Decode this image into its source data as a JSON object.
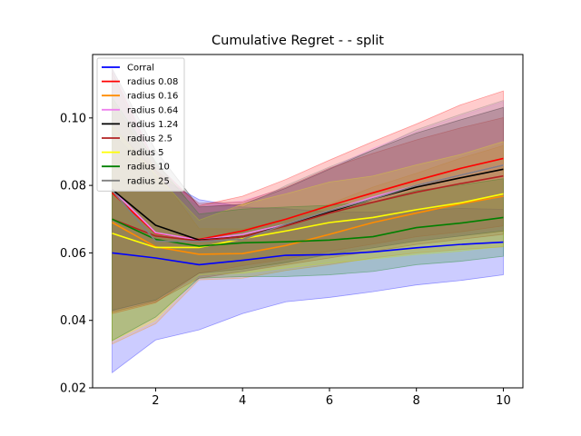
{
  "chart_data": {
    "type": "line",
    "title": "Cumulative Regret -  - split",
    "xlabel": "",
    "ylabel": "",
    "xlim": [
      0.55,
      10.45
    ],
    "ylim": [
      0.02,
      0.1188
    ],
    "x": [
      1,
      2,
      3,
      4,
      5,
      6,
      7,
      8,
      9,
      10
    ],
    "xticks": [
      2,
      4,
      6,
      8,
      10
    ],
    "yticks": [
      0.02,
      0.04,
      0.06,
      0.08,
      0.1
    ],
    "ytick_labels": [
      "0.02",
      "0.04",
      "0.06",
      "0.08",
      "0.10"
    ],
    "grid": false,
    "legend_placement": "upper-left",
    "band_opacity": 0.2,
    "series": [
      {
        "name": "Corral",
        "color": "#0000ff",
        "values": [
          0.06,
          0.0585,
          0.0565,
          0.0578,
          0.0593,
          0.0595,
          0.0603,
          0.0615,
          0.0625,
          0.0632
        ],
        "lower": [
          0.0245,
          0.0342,
          0.0372,
          0.042,
          0.0455,
          0.0468,
          0.0485,
          0.0505,
          0.0518,
          0.0535
        ],
        "upper": [
          0.0955,
          0.0828,
          0.0758,
          0.0736,
          0.0731,
          0.0722,
          0.0721,
          0.0725,
          0.0732,
          0.0729
        ]
      },
      {
        "name": "radius 0.08",
        "color": "#ff0000",
        "values": [
          0.0778,
          0.0658,
          0.064,
          0.0665,
          0.07,
          0.074,
          0.0778,
          0.0815,
          0.085,
          0.088
        ],
        "lower": [
          0.042,
          0.0452,
          0.054,
          0.0562,
          0.0582,
          0.0605,
          0.0626,
          0.0648,
          0.0662,
          0.068
        ],
        "upper": [
          0.1136,
          0.0864,
          0.074,
          0.0768,
          0.0818,
          0.0875,
          0.093,
          0.0982,
          0.1038,
          0.108
        ]
      },
      {
        "name": "radius 0.16",
        "color": "#ff8c00",
        "values": [
          0.069,
          0.0618,
          0.0596,
          0.0598,
          0.0622,
          0.0655,
          0.069,
          0.0718,
          0.0745,
          0.0768
        ],
        "lower": [
          0.033,
          0.039,
          0.052,
          0.0525,
          0.0548,
          0.0565,
          0.0585,
          0.06,
          0.061,
          0.0618
        ],
        "upper": [
          0.105,
          0.0846,
          0.0672,
          0.0671,
          0.0696,
          0.0745,
          0.0795,
          0.0836,
          0.088,
          0.0918
        ]
      },
      {
        "name": "radius 0.64",
        "color": "#ee82ee",
        "values": [
          0.0788,
          0.066,
          0.0638,
          0.0655,
          0.0685,
          0.0725,
          0.0765,
          0.08,
          0.083,
          0.086
        ],
        "lower": [
          0.043,
          0.0455,
          0.054,
          0.0555,
          0.0578,
          0.06,
          0.062,
          0.064,
          0.0655,
          0.0672
        ],
        "upper": [
          0.1146,
          0.0865,
          0.0736,
          0.0755,
          0.0792,
          0.085,
          0.091,
          0.096,
          0.1005,
          0.1048
        ]
      },
      {
        "name": "radius 1.24",
        "color": "#000000",
        "values": [
          0.0788,
          0.0682,
          0.0638,
          0.0648,
          0.0682,
          0.0722,
          0.076,
          0.0795,
          0.0822,
          0.0848
        ],
        "lower": [
          0.043,
          0.046,
          0.054,
          0.0552,
          0.0572,
          0.0596,
          0.0615,
          0.0635,
          0.065,
          0.0665
        ],
        "upper": [
          0.1146,
          0.0904,
          0.0736,
          0.0744,
          0.0792,
          0.0848,
          0.0905,
          0.0955,
          0.0994,
          0.1031
        ]
      },
      {
        "name": "radius 2.5",
        "color": "#b22222",
        "values": [
          0.07,
          0.065,
          0.0636,
          0.0648,
          0.068,
          0.0718,
          0.075,
          0.078,
          0.0805,
          0.0828
        ],
        "lower": [
          0.0425,
          0.0455,
          0.0525,
          0.0545,
          0.0565,
          0.0585,
          0.0605,
          0.0625,
          0.064,
          0.0655
        ],
        "upper": [
          0.0975,
          0.0845,
          0.0747,
          0.0751,
          0.0795,
          0.0851,
          0.0895,
          0.0935,
          0.097,
          0.1001
        ]
      },
      {
        "name": "radius 5",
        "color": "#ffff00",
        "values": [
          0.0658,
          0.0616,
          0.0616,
          0.0642,
          0.0665,
          0.069,
          0.0705,
          0.0728,
          0.0748,
          0.0775
        ],
        "lower": [
          0.034,
          0.04,
          0.0535,
          0.054,
          0.0555,
          0.057,
          0.0582,
          0.0595,
          0.0605,
          0.062
        ],
        "upper": [
          0.0976,
          0.0832,
          0.0697,
          0.0744,
          0.0775,
          0.081,
          0.0828,
          0.0861,
          0.0891,
          0.093
        ]
      },
      {
        "name": "radius 10",
        "color": "#008000",
        "values": [
          0.07,
          0.064,
          0.062,
          0.063,
          0.0633,
          0.0638,
          0.0648,
          0.0675,
          0.0688,
          0.0705
        ],
        "lower": [
          0.034,
          0.041,
          0.0525,
          0.053,
          0.053,
          0.0535,
          0.0545,
          0.0565,
          0.0575,
          0.059
        ],
        "upper": [
          0.106,
          0.087,
          0.0715,
          0.073,
          0.0736,
          0.0741,
          0.0751,
          0.0785,
          0.0801,
          0.082
        ]
      },
      {
        "name": "radius 25",
        "color": "#808080",
        "values": [
          0.0785,
          0.0635,
          0.0634,
          0.064,
          0.0685,
          0.0725,
          0.076,
          0.08,
          0.083,
          0.086
        ],
        "lower": [
          0.0428,
          0.0462,
          0.053,
          0.0545,
          0.057,
          0.0595,
          0.0615,
          0.0635,
          0.065,
          0.0668
        ],
        "upper": [
          0.1142,
          0.0808,
          0.0738,
          0.0735,
          0.08,
          0.0855,
          0.0905,
          0.0965,
          0.101,
          0.1052
        ]
      }
    ]
  }
}
